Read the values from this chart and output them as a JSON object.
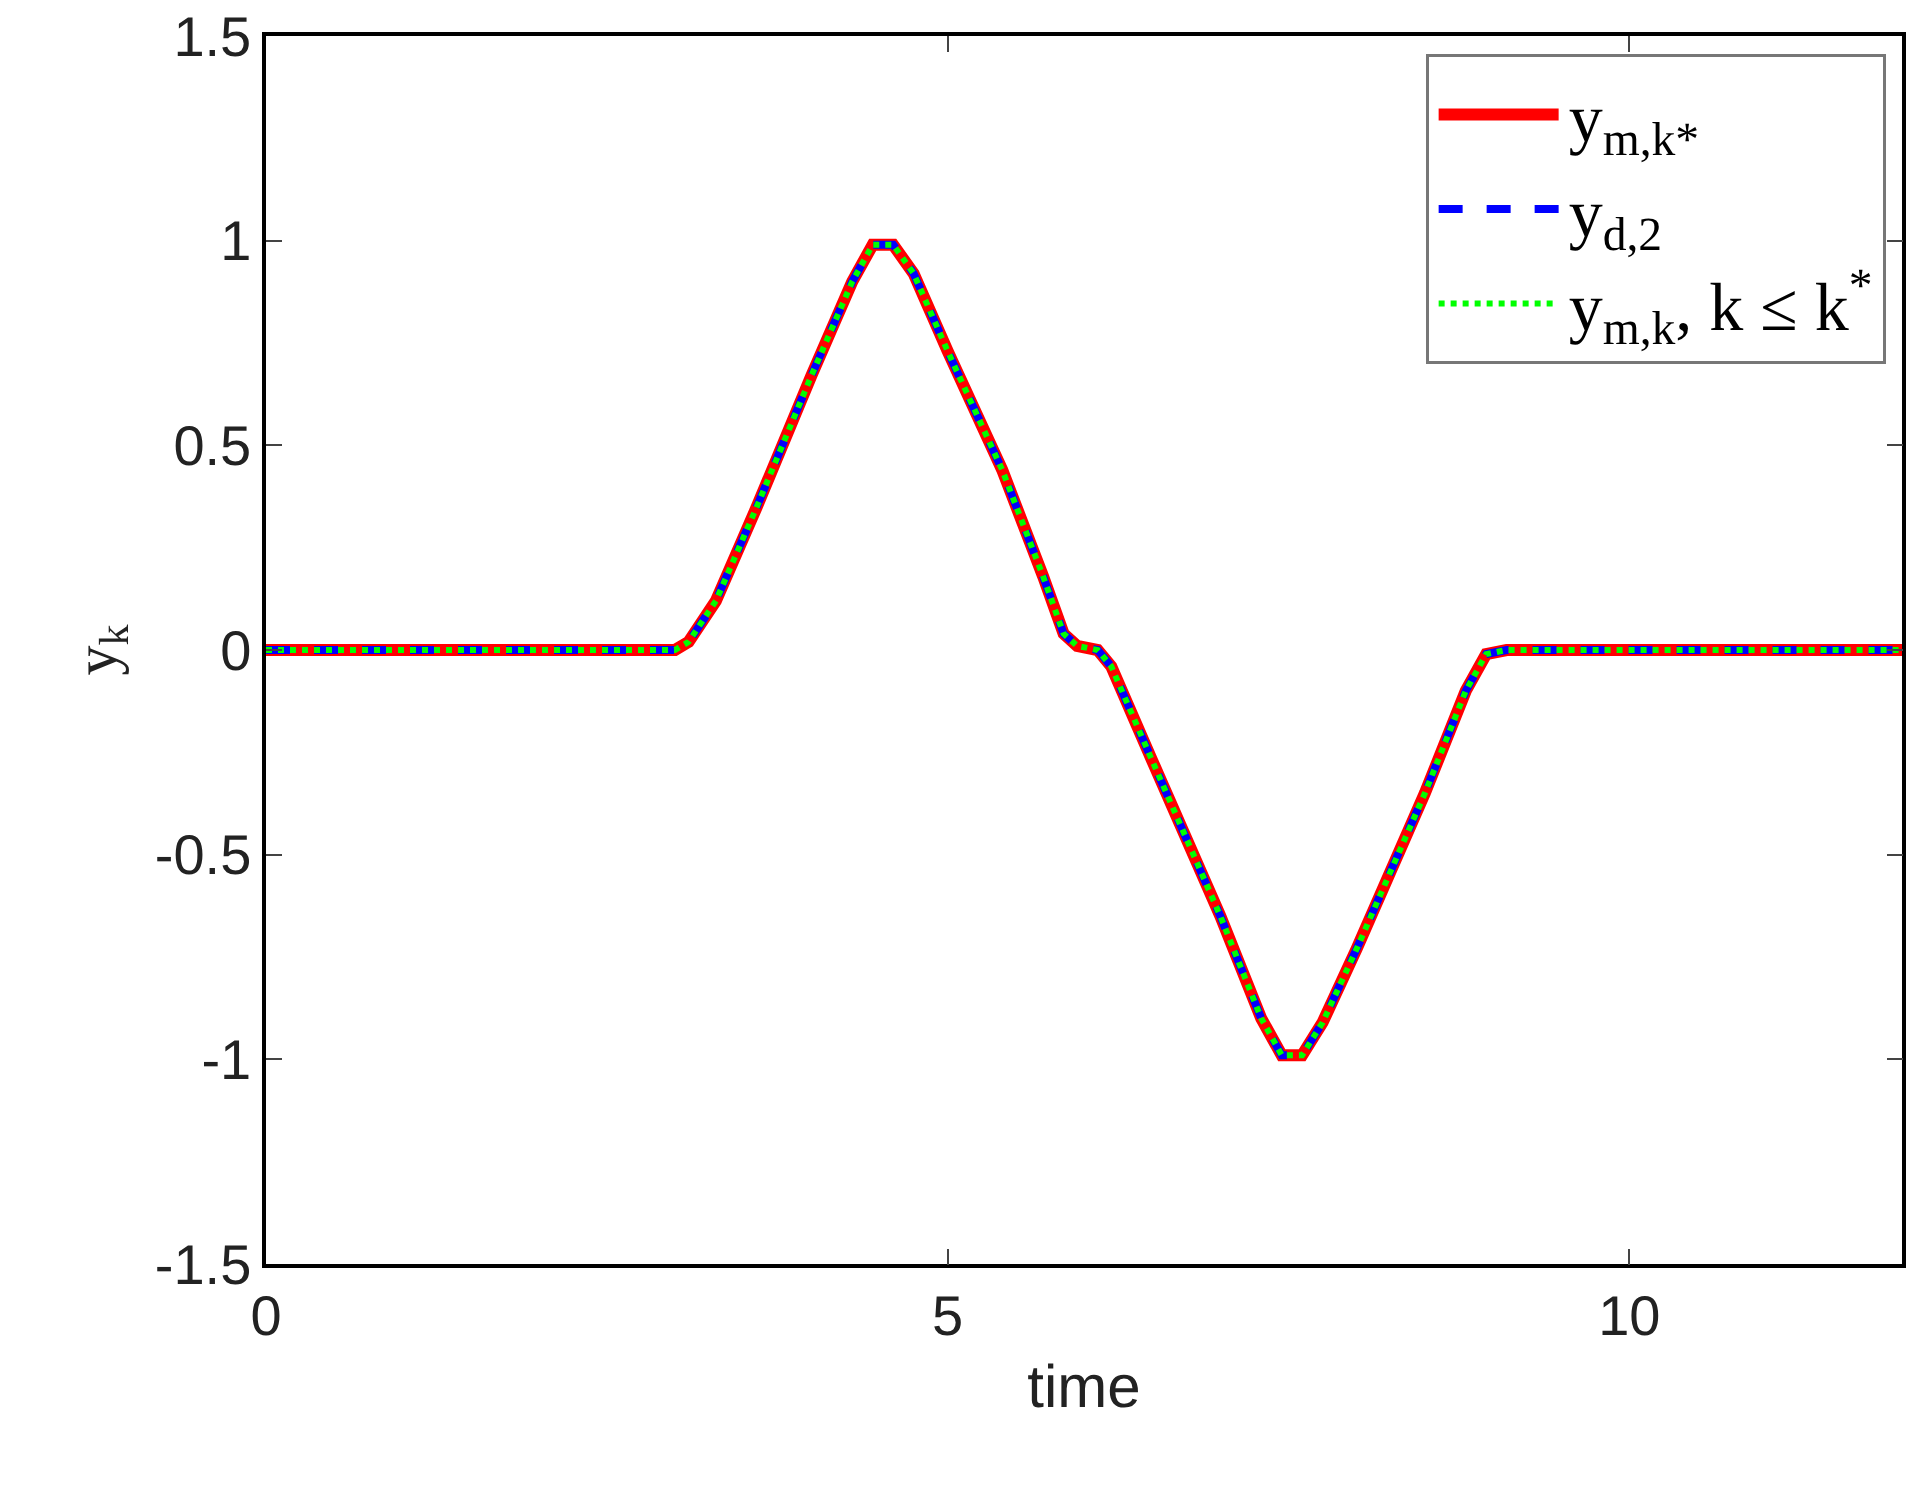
{
  "chart_data": {
    "type": "line",
    "xlabel": "time",
    "ylabel": "y$_{k}$",
    "x": [
      0,
      3,
      3.1,
      3.3,
      3.6,
      4.0,
      4.3,
      4.45,
      4.6,
      4.75,
      5.0,
      5.4,
      5.7,
      5.85,
      5.95,
      6.1,
      6.2,
      6.5,
      7.0,
      7.3,
      7.45,
      7.6,
      7.75,
      8.0,
      8.5,
      8.8,
      8.95,
      9.1,
      12
    ],
    "series": [
      {
        "name": "y$_{m,k*}$",
        "color": "#ff0000",
        "line_style": "solid",
        "values": [
          0,
          0,
          0.02,
          0.12,
          0.35,
          0.67,
          0.9,
          0.99,
          0.99,
          0.92,
          0.73,
          0.44,
          0.18,
          0.04,
          0.01,
          0,
          -0.04,
          -0.27,
          -0.65,
          -0.9,
          -0.99,
          -0.99,
          -0.91,
          -0.73,
          -0.35,
          -0.1,
          -0.01,
          0,
          0
        ]
      },
      {
        "name": "y$_{d,2}$",
        "color": "#0000ff",
        "line_style": "dashed",
        "values": [
          0,
          0,
          0.02,
          0.12,
          0.35,
          0.67,
          0.9,
          0.99,
          0.99,
          0.92,
          0.73,
          0.44,
          0.18,
          0.04,
          0.01,
          0,
          -0.04,
          -0.27,
          -0.65,
          -0.9,
          -0.99,
          -0.99,
          -0.91,
          -0.73,
          -0.35,
          -0.1,
          -0.01,
          0,
          0
        ]
      },
      {
        "name": "y$_{m,k}$, k ≤ k$^{*}$",
        "color": "#00ff00",
        "line_style": "dotted",
        "values": [
          0,
          0,
          0.02,
          0.12,
          0.35,
          0.67,
          0.9,
          0.99,
          0.99,
          0.92,
          0.73,
          0.44,
          0.18,
          0.04,
          0.01,
          0,
          -0.04,
          -0.27,
          -0.65,
          -0.9,
          -0.99,
          -0.99,
          -0.91,
          -0.73,
          -0.35,
          -0.1,
          -0.01,
          0,
          0
        ]
      }
    ],
    "xlim": [
      0,
      12
    ],
    "xticks": [
      0,
      5,
      10
    ],
    "ylim": [
      -1.5,
      1.5
    ],
    "yticks": [
      -1.5,
      -1,
      -0.5,
      0,
      0.5,
      1,
      1.5
    ],
    "grid": false,
    "legend": "top right",
    "marker": "none"
  }
}
